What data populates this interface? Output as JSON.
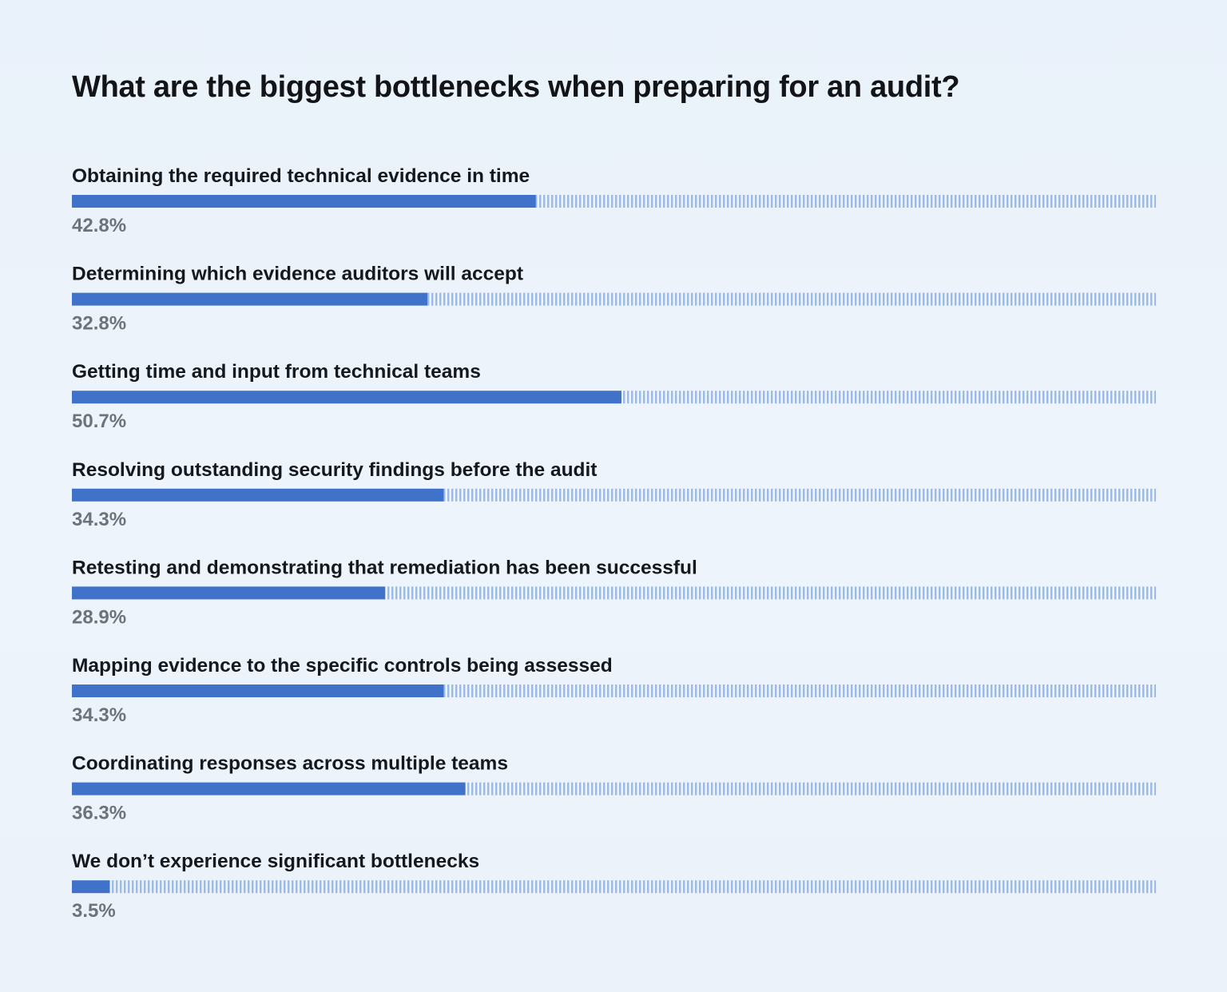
{
  "chart_data": {
    "type": "bar",
    "orientation": "horizontal",
    "title": "What are the biggest bottlenecks when preparing for an audit?",
    "xlim": [
      0,
      100
    ],
    "grid": false,
    "colors": {
      "bar": "#3f72c8",
      "track": "#9bbae6"
    },
    "categories": [
      "Obtaining the required technical evidence in time",
      "Determining which evidence auditors will accept",
      "Getting time and input from technical teams",
      "Resolving outstanding security findings before the audit",
      "Retesting and demonstrating that remediation has been successful",
      "Mapping evidence to the specific controls being assessed",
      "Coordinating responses across multiple teams",
      "We don’t experience significant bottlenecks"
    ],
    "values": [
      42.8,
      32.8,
      50.7,
      34.3,
      28.9,
      34.3,
      36.3,
      3.5
    ],
    "value_labels": [
      "42.8%",
      "32.8%",
      "50.7%",
      "34.3%",
      "28.9%",
      "34.3%",
      "36.3%",
      "3.5%"
    ]
  }
}
